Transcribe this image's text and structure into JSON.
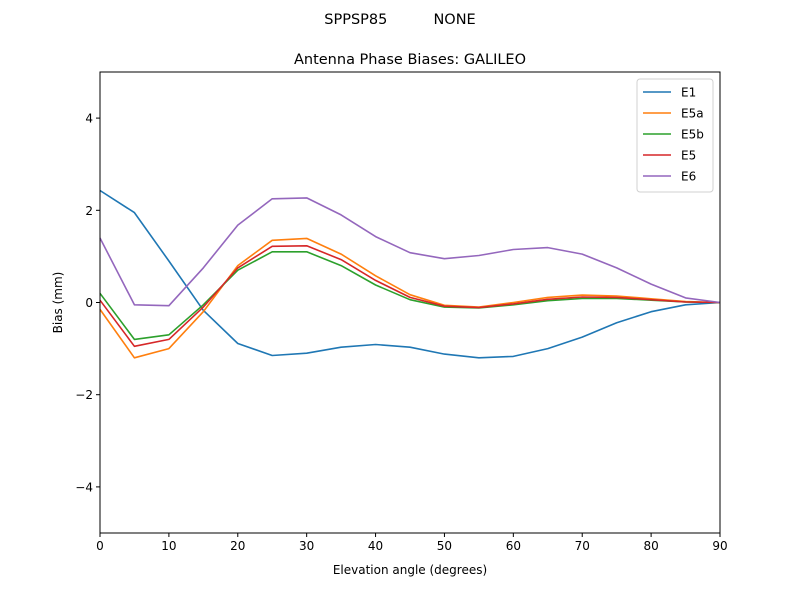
{
  "chart_data": {
    "type": "line",
    "suptitle": "SPPSP85          NONE",
    "title": "Antenna Phase Biases: GALILEO",
    "xlabel": "Elevation angle (degrees)",
    "ylabel": "Bias (mm)",
    "xlim": [
      0,
      90
    ],
    "ylim": [
      -5,
      5
    ],
    "xticks": [
      0,
      10,
      20,
      30,
      40,
      50,
      60,
      70,
      80,
      90
    ],
    "yticks": [
      -4,
      -2,
      0,
      2,
      4
    ],
    "ytick_labels": [
      "−4",
      "−2",
      "0",
      "2",
      "4"
    ],
    "grid": false,
    "legend_position": "top-right",
    "x": [
      0,
      5,
      10,
      15,
      20,
      25,
      30,
      35,
      40,
      45,
      50,
      55,
      60,
      65,
      70,
      75,
      80,
      85,
      90
    ],
    "series": [
      {
        "name": "E1",
        "color": "#1f77b4",
        "values": [
          2.43,
          1.95,
          0.9,
          -0.17,
          -0.89,
          -1.15,
          -1.1,
          -0.97,
          -0.91,
          -0.97,
          -1.12,
          -1.2,
          -1.17,
          -1.0,
          -0.75,
          -0.44,
          -0.2,
          -0.05,
          0
        ]
      },
      {
        "name": "E5a",
        "color": "#ff7f0e",
        "values": [
          -0.15,
          -1.2,
          -1.0,
          -0.2,
          0.8,
          1.35,
          1.39,
          1.05,
          0.58,
          0.17,
          -0.06,
          -0.1,
          0.0,
          0.11,
          0.16,
          0.14,
          0.08,
          0.02,
          0
        ]
      },
      {
        "name": "E5b",
        "color": "#2ca02c",
        "values": [
          0.2,
          -0.8,
          -0.7,
          -0.05,
          0.7,
          1.1,
          1.1,
          0.8,
          0.38,
          0.06,
          -0.1,
          -0.12,
          -0.05,
          0.04,
          0.09,
          0.09,
          0.05,
          0.01,
          0
        ]
      },
      {
        "name": "E5",
        "color": "#d62728",
        "values": [
          0.05,
          -0.95,
          -0.8,
          -0.1,
          0.75,
          1.22,
          1.23,
          0.93,
          0.48,
          0.11,
          -0.08,
          -0.11,
          -0.03,
          0.07,
          0.12,
          0.11,
          0.06,
          0.01,
          0
        ]
      },
      {
        "name": "E6",
        "color": "#9467bd",
        "values": [
          1.4,
          -0.05,
          -0.07,
          0.75,
          1.68,
          2.25,
          2.27,
          1.9,
          1.43,
          1.08,
          0.95,
          1.02,
          1.15,
          1.19,
          1.05,
          0.75,
          0.4,
          0.1,
          0
        ]
      }
    ]
  }
}
